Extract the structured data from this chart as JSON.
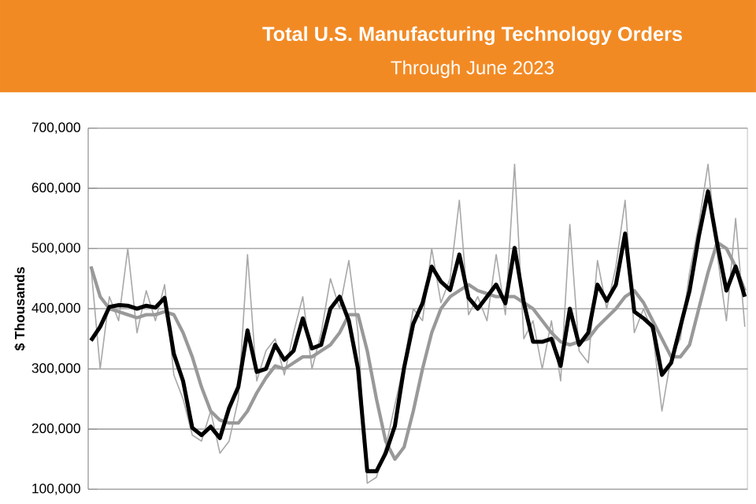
{
  "chart_data": {
    "type": "line",
    "title": "Total U.S. Manufacturing Technology Orders",
    "subtitle": "Through June 2023",
    "ylabel": "$ Thousands",
    "categories": [
      null,
      null,
      null,
      null,
      null,
      null,
      null,
      null,
      null,
      null,
      null,
      null,
      null,
      null,
      null,
      null,
      null,
      null,
      null,
      null,
      null,
      null,
      null,
      null,
      null,
      null,
      null,
      null,
      null,
      null,
      null,
      null,
      null,
      null,
      null,
      null,
      null,
      null,
      null,
      null,
      null,
      null,
      null,
      null,
      null,
      null,
      null,
      null,
      null,
      null,
      null,
      null,
      null,
      null,
      null,
      null,
      null,
      null,
      null,
      null,
      null,
      null,
      null,
      null,
      null,
      null,
      null,
      null,
      null,
      null,
      null,
      null
    ],
    "series": [
      {
        "color": "#a8a8a8",
        "values": [
          470000,
          300000,
          420000,
          380000,
          500000,
          360000,
          430000,
          380000,
          440000,
          290000,
          250000,
          190000,
          180000,
          230000,
          160000,
          180000,
          250000,
          490000,
          280000,
          330000,
          350000,
          290000,
          360000,
          420000,
          300000,
          360000,
          450000,
          400000,
          480000,
          360000,
          110000,
          120000,
          170000,
          240000,
          310000,
          400000,
          380000,
          500000,
          410000,
          450000,
          580000,
          390000,
          420000,
          380000,
          490000,
          390000,
          640000,
          350000,
          380000,
          300000,
          380000,
          280000,
          540000,
          330000,
          310000,
          480000,
          400000,
          470000,
          580000,
          360000,
          400000,
          360000,
          230000,
          320000,
          350000,
          460000,
          540000,
          640000,
          490000,
          380000,
          550000,
          370000
        ]
      },
      {
        "color": "#999999",
        "values": [
          470000,
          420000,
          400000,
          395000,
          390000,
          385000,
          390000,
          390000,
          395000,
          390000,
          360000,
          320000,
          270000,
          230000,
          215000,
          210000,
          210000,
          230000,
          260000,
          285000,
          305000,
          300000,
          310000,
          320000,
          320000,
          330000,
          340000,
          360000,
          390000,
          390000,
          330000,
          250000,
          180000,
          150000,
          170000,
          230000,
          300000,
          360000,
          400000,
          420000,
          430000,
          440000,
          430000,
          425000,
          420000,
          420000,
          420000,
          410000,
          400000,
          380000,
          360000,
          345000,
          340000,
          345000,
          350000,
          370000,
          385000,
          400000,
          420000,
          430000,
          410000,
          380000,
          350000,
          320000,
          320000,
          340000,
          400000,
          460000,
          510000,
          500000,
          470000,
          430000
        ]
      },
      {
        "color": "#000000",
        "values": [
          347000,
          370000,
          403000,
          406000,
          405000,
          400000,
          405000,
          402000,
          418000,
          325000,
          280000,
          202000,
          190000,
          204000,
          185000,
          235000,
          270000,
          364000,
          295000,
          300000,
          340000,
          315000,
          330000,
          384000,
          334000,
          340000,
          400000,
          420000,
          380000,
          300000,
          130000,
          130000,
          160000,
          205000,
          302000,
          375000,
          409000,
          470000,
          445000,
          431000,
          490000,
          418000,
          400000,
          420000,
          440000,
          409000,
          501000,
          410000,
          345000,
          345000,
          350000,
          305000,
          400000,
          340000,
          360000,
          440000,
          413000,
          440000,
          525000,
          395000,
          384000,
          370000,
          290000,
          310000,
          370000,
          430000,
          520000,
          595000,
          508000,
          430000,
          470000,
          420000
        ]
      }
    ],
    "ylim": [
      100000,
      700000
    ],
    "yticks": [
      {
        "value": 100000,
        "label": "100,000"
      },
      {
        "value": 200000,
        "label": "200,000"
      },
      {
        "value": 300000,
        "label": "300,000"
      },
      {
        "value": 400000,
        "label": "400,000"
      },
      {
        "value": 500000,
        "label": "500,000"
      },
      {
        "value": 600000,
        "label": "600,000"
      },
      {
        "value": 700000,
        "label": "700,000"
      }
    ],
    "grid": "y"
  }
}
